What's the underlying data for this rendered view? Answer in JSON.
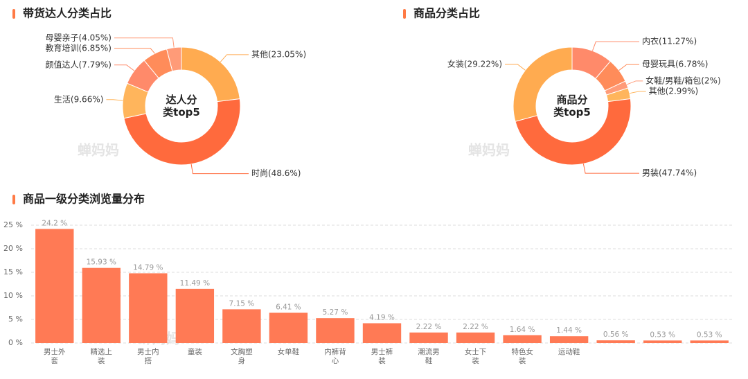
{
  "watermark": "蝉妈妈",
  "chart_data": [
    {
      "type": "pie",
      "title": "带货达人分类占比",
      "center_label": "达人分类top5",
      "values": [
        23.05,
        48.6,
        9.66,
        7.79,
        6.85,
        4.05
      ],
      "value_labels": [
        "其他(23.05%)",
        "时尚(48.6%)",
        "生活(9.66%)",
        "颜值达人(7.79%)",
        "教育培训(6.85%)",
        "母婴亲子(4.05%)"
      ],
      "colors": [
        "#ffab50",
        "#ff6a3d",
        "#ffb55c",
        "#ff8a6a",
        "#ff8c5a",
        "#ff9b78"
      ]
    },
    {
      "type": "pie",
      "title": "商品分类占比",
      "center_label": "商品分类top5",
      "values": [
        11.27,
        6.78,
        2,
        2.99,
        47.74,
        29.22
      ],
      "value_labels": [
        "内衣(11.27%)",
        "母婴玩具(6.78%)",
        "女鞋/男鞋/箱包(2%)",
        "其他(2.99%)",
        "男装(47.74%)",
        "女装(29.22%)"
      ],
      "colors": [
        "#ff8a6a",
        "#ff8c5a",
        "#ff9b78",
        "#ffb55c",
        "#ff6a3d",
        "#ffab50"
      ]
    },
    {
      "type": "bar",
      "title": "商品一级分类浏览量分布",
      "categories": [
        "男士外套",
        "精选上装",
        "男士内搭",
        "童装",
        "文胸塑身",
        "女单鞋",
        "内裤背心",
        "男士裤装",
        "潮流男鞋",
        "女士下装",
        "特色女装",
        "运动鞋",
        null,
        null,
        null
      ],
      "values": [
        24.2,
        15.93,
        14.79,
        11.49,
        7.15,
        6.41,
        5.27,
        4.19,
        2.22,
        2.22,
        1.64,
        1.44,
        0.56,
        0.53,
        0.53
      ],
      "value_labels": [
        "24.2 %",
        "15.93 %",
        "14.79 %",
        "11.49 %",
        "7.15 %",
        "6.41 %",
        "5.27 %",
        "4.19 %",
        "2.22 %",
        "2.22 %",
        "1.64 %",
        "1.44 %",
        "0.56 %",
        "0.53 %",
        "0.53 %"
      ],
      "color": "#ff7a55",
      "ylim": [
        0,
        25
      ],
      "yticks": [
        {
          "value": 0,
          "label": "0 %"
        },
        {
          "value": 5,
          "label": "5 %"
        },
        {
          "value": 10,
          "label": "10 %"
        },
        {
          "value": 15,
          "label": "15 %"
        },
        {
          "value": 20,
          "label": "20 %"
        },
        {
          "value": 25,
          "label": "25 %"
        }
      ],
      "grid": true
    }
  ]
}
